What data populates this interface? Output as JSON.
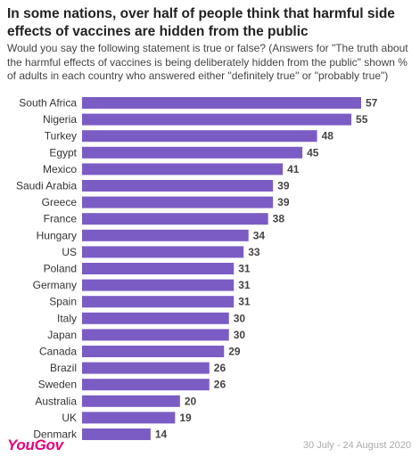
{
  "header": {
    "title": "In some nations, over half of people think that harmful side effects of vaccines are hidden from the public",
    "subtitle": "Would you say the following statement is true or false? (Answers for \"The truth about the harmful effects of vaccines is being deliberately hidden from the public\" shown % of adults in each country who answered either \"definitely true\" or \"probably true\")"
  },
  "footer": {
    "brand": "YouGov",
    "dates": "30 July - 24 August 2020"
  },
  "colors": {
    "bar": "#7b5cc4",
    "brand": "#e4007c"
  },
  "chart_data": {
    "type": "bar",
    "orientation": "horizontal",
    "categories": [
      "South Africa",
      "Nigeria",
      "Turkey",
      "Egypt",
      "Mexico",
      "Saudi Arabia",
      "Greece",
      "France",
      "Hungary",
      "US",
      "Poland",
      "Germany",
      "Spain",
      "Italy",
      "Japan",
      "Canada",
      "Brazil",
      "Sweden",
      "Australia",
      "UK",
      "Denmark"
    ],
    "values": [
      57,
      55,
      48,
      45,
      41,
      39,
      39,
      38,
      34,
      33,
      31,
      31,
      31,
      30,
      30,
      29,
      26,
      26,
      20,
      19,
      14
    ],
    "title": "",
    "xlabel": "",
    "ylabel": "",
    "xlim": [
      0,
      57
    ],
    "grid": false,
    "data_labels": true
  }
}
